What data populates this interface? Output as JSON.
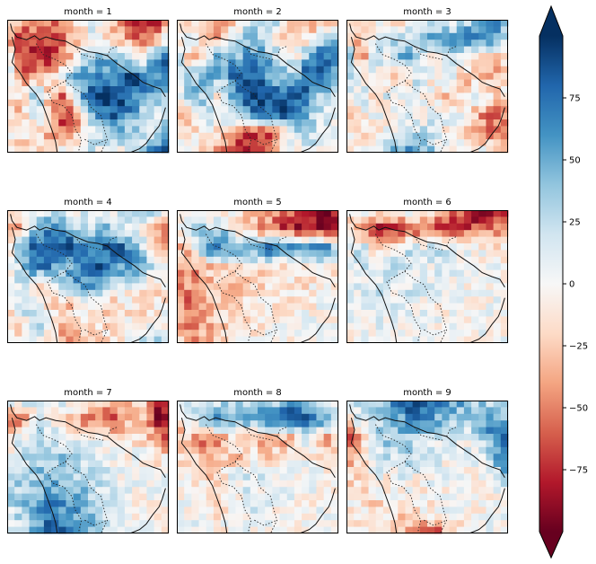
{
  "chart_data": {
    "type": "heatmap",
    "layout": "3x3 small multiples",
    "facet_variable": "month",
    "panels": [
      {
        "title": "month = 1",
        "month": 1,
        "pattern": [
          [
            10,
            -40,
            -20,
            -60,
            -30,
            -10,
            20,
            -10,
            -50,
            -70,
            -80,
            -80
          ],
          [
            -40,
            -70,
            -80,
            -60,
            -50,
            -20,
            10,
            -30,
            -40,
            -60,
            -50,
            20
          ],
          [
            30,
            -70,
            -60,
            -80,
            -40,
            10,
            40,
            60,
            30,
            -20,
            60,
            80
          ],
          [
            20,
            -50,
            -40,
            -20,
            20,
            60,
            70,
            40,
            80,
            90,
            70,
            50
          ],
          [
            -10,
            -20,
            40,
            -30,
            -60,
            50,
            90,
            95,
            90,
            60,
            40,
            30
          ],
          [
            -20,
            -30,
            20,
            -50,
            -70,
            -40,
            60,
            80,
            70,
            40,
            10,
            5
          ],
          [
            -10,
            -20,
            -10,
            -40,
            -60,
            -20,
            20,
            40,
            30,
            20,
            10,
            60
          ],
          [
            -5,
            -10,
            -30,
            -20,
            10,
            30,
            10,
            5,
            0,
            5,
            80,
            90
          ]
        ]
      },
      {
        "title": "month = 2",
        "month": 2,
        "pattern": [
          [
            10,
            -20,
            -10,
            -40,
            -20,
            10,
            30,
            20,
            -30,
            -60,
            -50,
            -40
          ],
          [
            -30,
            30,
            -20,
            -40,
            20,
            40,
            20,
            -20,
            -30,
            -10,
            40,
            60
          ],
          [
            40,
            -40,
            10,
            60,
            40,
            70,
            50,
            30,
            -10,
            60,
            80,
            70
          ],
          [
            20,
            30,
            60,
            40,
            80,
            90,
            60,
            30,
            50,
            90,
            70,
            40
          ],
          [
            -10,
            50,
            30,
            -20,
            60,
            95,
            90,
            80,
            95,
            60,
            30,
            20
          ],
          [
            -20,
            -30,
            40,
            20,
            40,
            60,
            80,
            90,
            70,
            40,
            10,
            0
          ],
          [
            -10,
            -20,
            10,
            -30,
            -60,
            -80,
            -70,
            -40,
            20,
            30,
            10,
            5
          ],
          [
            -5,
            -10,
            -20,
            -40,
            -80,
            -90,
            -70,
            -30,
            0,
            5,
            10,
            5
          ]
        ]
      },
      {
        "title": "month = 3",
        "month": 3,
        "pattern": [
          [
            10,
            -20,
            -10,
            -30,
            -10,
            10,
            20,
            10,
            10,
            50,
            80,
            40
          ],
          [
            -20,
            -40,
            20,
            40,
            20,
            30,
            60,
            40,
            70,
            90,
            60,
            20
          ],
          [
            90,
            -50,
            30,
            -10,
            60,
            20,
            -20,
            30,
            10,
            -30,
            -40,
            -20
          ],
          [
            40,
            -20,
            10,
            -30,
            -20,
            30,
            -10,
            20,
            -30,
            -20,
            -40,
            -10
          ],
          [
            -10,
            30,
            -20,
            20,
            -10,
            10,
            -10,
            -30,
            -20,
            10,
            -20,
            -10
          ],
          [
            -20,
            -10,
            10,
            -20,
            20,
            -10,
            20,
            10,
            10,
            -40,
            -60,
            -30
          ],
          [
            -10,
            -20,
            -10,
            10,
            20,
            30,
            10,
            -10,
            -20,
            -30,
            -50,
            -70
          ],
          [
            -5,
            -10,
            20,
            40,
            60,
            50,
            30,
            10,
            0,
            5,
            -10,
            -20
          ]
        ]
      },
      {
        "title": "month = 4",
        "month": 4,
        "pattern": [
          [
            5,
            -10,
            -10,
            20,
            10,
            5,
            10,
            5,
            10,
            20,
            40,
            10
          ],
          [
            -60,
            -30,
            40,
            80,
            60,
            20,
            30,
            40,
            20,
            0,
            -30,
            -50
          ],
          [
            -40,
            60,
            90,
            70,
            90,
            80,
            60,
            90,
            80,
            30,
            -20,
            -40
          ],
          [
            -20,
            30,
            80,
            60,
            40,
            70,
            90,
            60,
            50,
            60,
            30,
            -20
          ],
          [
            -10,
            20,
            -30,
            -20,
            40,
            60,
            50,
            20,
            10,
            -10,
            -30,
            -10
          ],
          [
            -20,
            40,
            10,
            -20,
            -30,
            -10,
            -20,
            -30,
            -10,
            -20,
            -10,
            -5
          ],
          [
            -10,
            -20,
            30,
            -10,
            -30,
            -20,
            -10,
            -20,
            -10,
            -10,
            -5,
            5
          ],
          [
            -5,
            -10,
            20,
            -20,
            -40,
            -30,
            -20,
            -10,
            -5,
            20,
            40,
            10
          ]
        ]
      },
      {
        "title": "month = 5",
        "month": 5,
        "pattern": [
          [
            5,
            0,
            -10,
            -20,
            -10,
            -20,
            -30,
            -40,
            -60,
            -80,
            -90,
            -90
          ],
          [
            -20,
            20,
            30,
            40,
            -20,
            -30,
            -50,
            -70,
            -80,
            -90,
            -90,
            -80
          ],
          [
            -30,
            -20,
            60,
            70,
            50,
            60,
            80,
            70,
            60,
            70,
            80,
            20
          ],
          [
            -40,
            -50,
            -30,
            -20,
            -10,
            -20,
            -10,
            -20,
            -10,
            -10,
            -20,
            -10
          ],
          [
            -50,
            -40,
            -30,
            -20,
            -30,
            -20,
            -20,
            -10,
            -10,
            -10,
            -5,
            0
          ],
          [
            -40,
            -60,
            -30,
            -20,
            -20,
            -10,
            -10,
            -5,
            -5,
            -5,
            0,
            0
          ],
          [
            -30,
            -50,
            -40,
            -20,
            -20,
            -10,
            -10,
            -5,
            -5,
            0,
            0,
            0
          ],
          [
            -20,
            -40,
            -30,
            -20,
            -10,
            -10,
            -5,
            -5,
            0,
            0,
            0,
            0
          ]
        ]
      },
      {
        "title": "month = 6",
        "month": 6,
        "pattern": [
          [
            5,
            10,
            5,
            10,
            5,
            5,
            -10,
            -40,
            -70,
            -90,
            -90,
            -80
          ],
          [
            -20,
            -60,
            -80,
            -90,
            -70,
            -60,
            -80,
            -80,
            -70,
            -60,
            -50,
            -40
          ],
          [
            -10,
            40,
            -20,
            -10,
            20,
            10,
            30,
            20,
            10,
            0,
            -10,
            -10
          ],
          [
            -5,
            20,
            10,
            30,
            20,
            10,
            5,
            10,
            5,
            0,
            0,
            0
          ],
          [
            0,
            10,
            20,
            10,
            20,
            10,
            5,
            5,
            0,
            0,
            0,
            0
          ],
          [
            0,
            5,
            10,
            5,
            10,
            5,
            0,
            0,
            0,
            0,
            0,
            0
          ],
          [
            0,
            5,
            5,
            10,
            5,
            5,
            0,
            0,
            0,
            0,
            0,
            0
          ],
          [
            0,
            0,
            5,
            5,
            5,
            0,
            0,
            0,
            0,
            0,
            0,
            0
          ]
        ]
      },
      {
        "title": "month = 7",
        "month": 7,
        "pattern": [
          [
            10,
            20,
            10,
            5,
            10,
            -10,
            -20,
            -40,
            -30,
            -10,
            -70,
            -90
          ],
          [
            -40,
            -60,
            10,
            5,
            -20,
            -40,
            -60,
            -70,
            -40,
            -20,
            -80,
            -90
          ],
          [
            -20,
            10,
            30,
            20,
            10,
            5,
            10,
            -10,
            -20,
            -10,
            -30,
            -60
          ],
          [
            -10,
            20,
            30,
            40,
            30,
            20,
            10,
            5,
            0,
            0,
            -10,
            -10
          ],
          [
            10,
            30,
            40,
            50,
            40,
            30,
            20,
            10,
            5,
            0,
            0,
            0
          ],
          [
            20,
            40,
            50,
            60,
            50,
            40,
            30,
            10,
            5,
            0,
            0,
            0
          ],
          [
            10,
            30,
            60,
            70,
            60,
            50,
            30,
            10,
            0,
            0,
            0,
            0
          ],
          [
            5,
            20,
            50,
            80,
            90,
            70,
            40,
            10,
            0,
            0,
            0,
            0
          ]
        ]
      },
      {
        "title": "month = 8",
        "month": 8,
        "pattern": [
          [
            20,
            30,
            10,
            20,
            40,
            30,
            20,
            30,
            60,
            40,
            20,
            10
          ],
          [
            -40,
            20,
            40,
            60,
            30,
            50,
            70,
            80,
            90,
            80,
            60,
            30
          ],
          [
            -20,
            -30,
            -60,
            -40,
            -20,
            -30,
            -40,
            -50,
            -30,
            20,
            -40,
            -30
          ],
          [
            -10,
            -20,
            -30,
            -20,
            -30,
            -10,
            -20,
            -10,
            10,
            -10,
            -20,
            -30
          ],
          [
            -5,
            -10,
            -20,
            -10,
            10,
            20,
            10,
            5,
            0,
            5,
            0,
            0
          ],
          [
            0,
            -10,
            -10,
            -20,
            -10,
            10,
            5,
            5,
            0,
            0,
            0,
            0
          ],
          [
            0,
            5,
            -10,
            -10,
            5,
            10,
            5,
            0,
            0,
            0,
            0,
            0
          ],
          [
            0,
            0,
            5,
            -5,
            5,
            5,
            0,
            0,
            0,
            0,
            0,
            0
          ]
        ]
      },
      {
        "title": "month = 9",
        "month": 9,
        "pattern": [
          [
            10,
            20,
            30,
            60,
            80,
            90,
            80,
            60,
            50,
            30,
            20,
            10
          ],
          [
            -20,
            20,
            30,
            40,
            60,
            70,
            50,
            40,
            30,
            50,
            70,
            40
          ],
          [
            -90,
            -30,
            20,
            40,
            30,
            20,
            20,
            10,
            5,
            20,
            60,
            80
          ],
          [
            -40,
            -20,
            10,
            20,
            30,
            20,
            10,
            5,
            0,
            10,
            40,
            90
          ],
          [
            -20,
            -10,
            10,
            -10,
            20,
            -10,
            10,
            0,
            0,
            0,
            10,
            30
          ],
          [
            -10,
            -20,
            -10,
            -10,
            -5,
            -10,
            -5,
            0,
            0,
            0,
            0,
            5
          ],
          [
            -5,
            -10,
            -20,
            -10,
            -20,
            -10,
            -5,
            0,
            0,
            0,
            0,
            0
          ],
          [
            0,
            -5,
            -10,
            -20,
            -40,
            -60,
            -70,
            -30,
            -10,
            0,
            0,
            0
          ]
        ]
      }
    ],
    "colorbar": {
      "colormap": "RdBu",
      "range": [
        -100,
        100
      ],
      "extend": "both",
      "ticks": [
        75,
        50,
        25,
        0,
        -25,
        -50,
        -75
      ],
      "tick_labels": [
        "75",
        "50",
        "25",
        "0",
        "−25",
        "−50",
        "−75"
      ]
    },
    "grid": false,
    "xlabel": "",
    "ylabel": "",
    "title": ""
  }
}
